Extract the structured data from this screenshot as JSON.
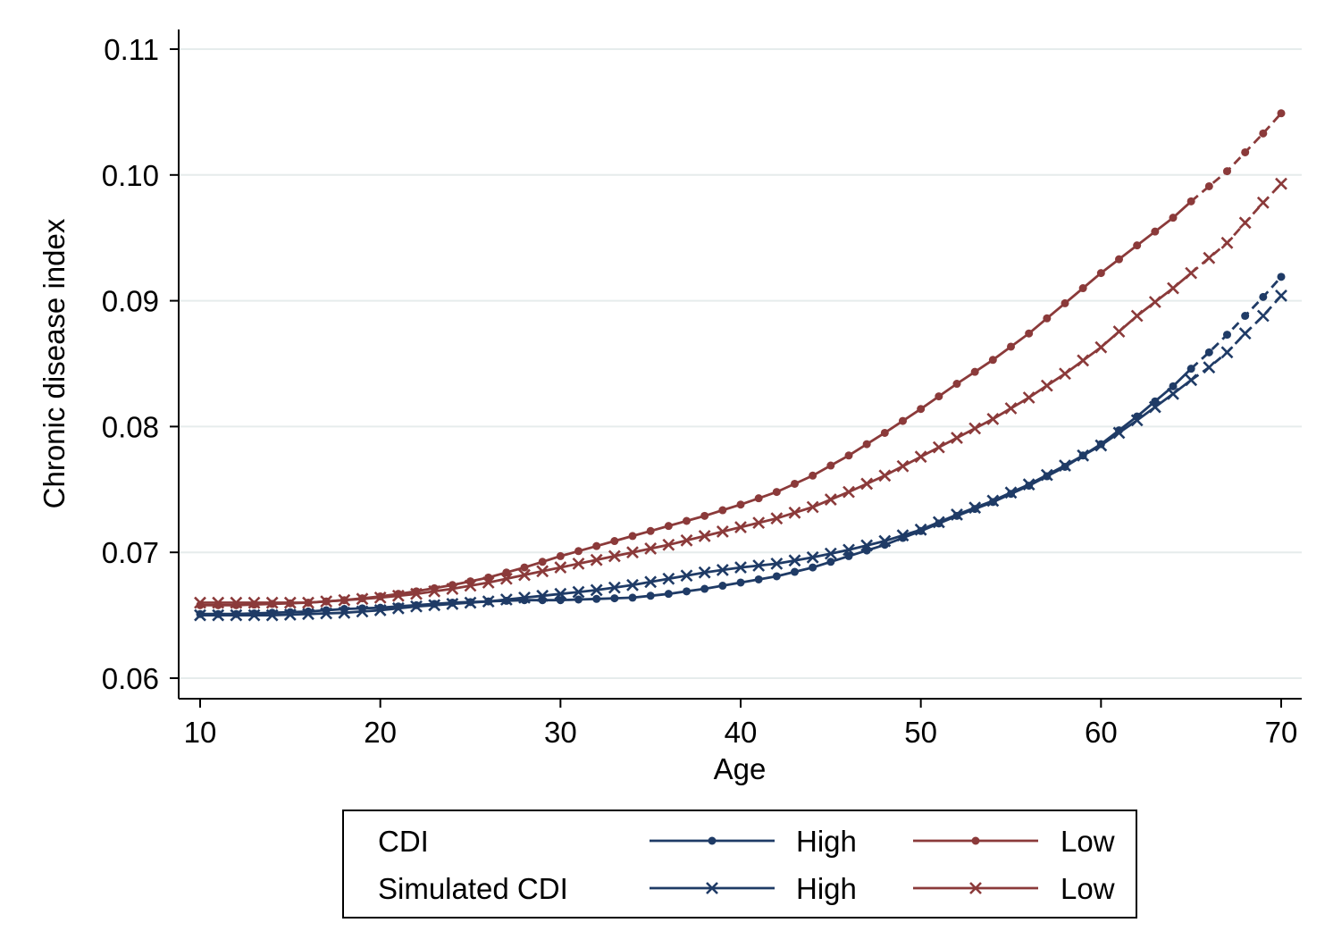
{
  "chart_data": {
    "type": "line",
    "title": "",
    "xlabel": "Age",
    "ylabel": "Chronic disease index",
    "xlim": [
      10,
      70
    ],
    "ylim": [
      0.06,
      0.11
    ],
    "x_ticks": [
      10,
      20,
      30,
      40,
      50,
      60,
      70
    ],
    "y_ticks": [
      0.06,
      0.07,
      0.08,
      0.09,
      0.1,
      0.11
    ],
    "y_tick_labels": [
      "0.06",
      "0.07",
      "0.08",
      "0.09",
      "0.10",
      "0.11"
    ],
    "grid": "horizontal",
    "solid_until_x": 65,
    "dashed_after_x": 65,
    "legend": {
      "placement": "bottom",
      "row_labels": [
        "CDI",
        "Simulated CDI"
      ],
      "entries": [
        {
          "row": 0,
          "label": "High",
          "series": 0
        },
        {
          "row": 0,
          "label": "Low",
          "series": 1
        },
        {
          "row": 1,
          "label": "High",
          "series": 2
        },
        {
          "row": 1,
          "label": "Low",
          "series": 3
        }
      ]
    },
    "colors": {
      "high": "#1f3b66",
      "low": "#8b3a3a",
      "grid": "#e6ecec"
    },
    "series": [
      {
        "group": "CDI",
        "name": "High",
        "marker": "dot",
        "color": "#1f3b66",
        "points": [
          [
            10,
            0.0651
          ],
          [
            12,
            0.0651
          ],
          [
            14,
            0.0652
          ],
          [
            16,
            0.0653
          ],
          [
            18,
            0.0655
          ],
          [
            20,
            0.0656
          ],
          [
            22,
            0.0658
          ],
          [
            24,
            0.066
          ],
          [
            26,
            0.0661
          ],
          [
            28,
            0.0662
          ],
          [
            30,
            0.0662
          ],
          [
            32,
            0.0663
          ],
          [
            34,
            0.0664
          ],
          [
            36,
            0.0667
          ],
          [
            38,
            0.0671
          ],
          [
            40,
            0.0676
          ],
          [
            42,
            0.0681
          ],
          [
            44,
            0.0688
          ],
          [
            46,
            0.0697
          ],
          [
            48,
            0.0706
          ],
          [
            50,
            0.0717
          ],
          [
            52,
            0.0729
          ],
          [
            54,
            0.074
          ],
          [
            56,
            0.0753
          ],
          [
            58,
            0.0768
          ],
          [
            60,
            0.0786
          ],
          [
            62,
            0.0808
          ],
          [
            64,
            0.0832
          ],
          [
            65,
            0.0846
          ],
          [
            66,
            0.0859
          ],
          [
            67,
            0.0873
          ],
          [
            68,
            0.0888
          ],
          [
            69,
            0.0903
          ],
          [
            70,
            0.0919
          ]
        ]
      },
      {
        "group": "CDI",
        "name": "Low",
        "marker": "dot",
        "color": "#8b3a3a",
        "points": [
          [
            10,
            0.0658
          ],
          [
            12,
            0.0658
          ],
          [
            14,
            0.0659
          ],
          [
            16,
            0.066
          ],
          [
            18,
            0.0662
          ],
          [
            20,
            0.0665
          ],
          [
            22,
            0.0669
          ],
          [
            24,
            0.0674
          ],
          [
            26,
            0.068
          ],
          [
            28,
            0.0688
          ],
          [
            30,
            0.0697
          ],
          [
            32,
            0.0705
          ],
          [
            34,
            0.0713
          ],
          [
            36,
            0.0721
          ],
          [
            38,
            0.0729
          ],
          [
            40,
            0.0738
          ],
          [
            42,
            0.0748
          ],
          [
            44,
            0.0761
          ],
          [
            46,
            0.0777
          ],
          [
            48,
            0.0795
          ],
          [
            50,
            0.0814
          ],
          [
            52,
            0.0834
          ],
          [
            54,
            0.0853
          ],
          [
            56,
            0.0874
          ],
          [
            58,
            0.0898
          ],
          [
            60,
            0.0922
          ],
          [
            62,
            0.0944
          ],
          [
            64,
            0.0966
          ],
          [
            65,
            0.0979
          ],
          [
            66,
            0.0991
          ],
          [
            67,
            0.1003
          ],
          [
            68,
            0.1018
          ],
          [
            69,
            0.1033
          ],
          [
            70,
            0.1049
          ]
        ]
      },
      {
        "group": "Simulated CDI",
        "name": "High",
        "marker": "x",
        "color": "#1f3b66",
        "points": [
          [
            10,
            0.065
          ],
          [
            12,
            0.065
          ],
          [
            14,
            0.065
          ],
          [
            16,
            0.0651
          ],
          [
            18,
            0.0652
          ],
          [
            20,
            0.0654
          ],
          [
            22,
            0.0657
          ],
          [
            24,
            0.0659
          ],
          [
            26,
            0.0661
          ],
          [
            28,
            0.0664
          ],
          [
            30,
            0.0667
          ],
          [
            32,
            0.067
          ],
          [
            34,
            0.0674
          ],
          [
            36,
            0.0679
          ],
          [
            38,
            0.0684
          ],
          [
            40,
            0.0688
          ],
          [
            42,
            0.0691
          ],
          [
            44,
            0.0696
          ],
          [
            46,
            0.0702
          ],
          [
            48,
            0.0709
          ],
          [
            50,
            0.0718
          ],
          [
            52,
            0.073
          ],
          [
            54,
            0.0741
          ],
          [
            56,
            0.0754
          ],
          [
            58,
            0.0769
          ],
          [
            60,
            0.0785
          ],
          [
            62,
            0.0805
          ],
          [
            64,
            0.0826
          ],
          [
            65,
            0.0837
          ],
          [
            66,
            0.0847
          ],
          [
            67,
            0.0859
          ],
          [
            68,
            0.0874
          ],
          [
            69,
            0.0888
          ],
          [
            70,
            0.0904
          ]
        ]
      },
      {
        "group": "Simulated CDI",
        "name": "Low",
        "marker": "x",
        "color": "#8b3a3a",
        "points": [
          [
            10,
            0.066
          ],
          [
            12,
            0.066
          ],
          [
            14,
            0.066
          ],
          [
            16,
            0.066
          ],
          [
            18,
            0.0662
          ],
          [
            20,
            0.0664
          ],
          [
            22,
            0.0667
          ],
          [
            24,
            0.0671
          ],
          [
            26,
            0.0676
          ],
          [
            28,
            0.0682
          ],
          [
            30,
            0.0688
          ],
          [
            32,
            0.0694
          ],
          [
            34,
            0.07
          ],
          [
            36,
            0.0706
          ],
          [
            38,
            0.0713
          ],
          [
            40,
            0.072
          ],
          [
            42,
            0.0727
          ],
          [
            44,
            0.0736
          ],
          [
            46,
            0.0748
          ],
          [
            48,
            0.0761
          ],
          [
            50,
            0.0776
          ],
          [
            52,
            0.0791
          ],
          [
            54,
            0.0806
          ],
          [
            56,
            0.0823
          ],
          [
            58,
            0.0842
          ],
          [
            60,
            0.0863
          ],
          [
            62,
            0.0888
          ],
          [
            64,
            0.091
          ],
          [
            65,
            0.0922
          ],
          [
            66,
            0.0934
          ],
          [
            67,
            0.0946
          ],
          [
            68,
            0.0962
          ],
          [
            69,
            0.0978
          ],
          [
            70,
            0.0993
          ]
        ]
      }
    ]
  }
}
